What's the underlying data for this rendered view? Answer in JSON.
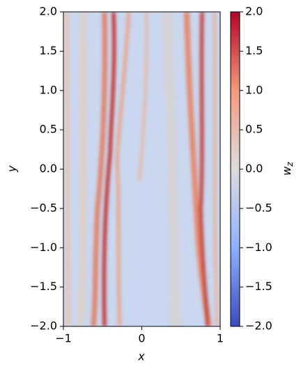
{
  "chart_data": {
    "type": "heatmap",
    "xlabel": "x",
    "ylabel": "y",
    "colorbar_label": {
      "base": "w",
      "sub": "z"
    },
    "xlim": [
      -1,
      1
    ],
    "ylim": [
      -2,
      2
    ],
    "xticks": [
      {
        "value": -1,
        "label": "−1"
      },
      0,
      1
    ],
    "yticks": [
      {
        "value": -2,
        "label": "−2.0"
      },
      {
        "value": -1.5,
        "label": "−1.5"
      },
      {
        "value": -1,
        "label": "−1.0"
      },
      {
        "value": -0.5,
        "label": "−0.5"
      },
      {
        "value": 0,
        "label": "0.0"
      },
      {
        "value": 0.5,
        "label": "0.5"
      },
      {
        "value": 1,
        "label": "1.0"
      },
      {
        "value": 1.5,
        "label": "1.5"
      },
      {
        "value": 2,
        "label": "2.0"
      }
    ],
    "clim": [
      -2,
      2
    ],
    "cticks": [
      {
        "value": -2,
        "label": "−2.0"
      },
      {
        "value": -1.5,
        "label": "−1.5"
      },
      {
        "value": -1,
        "label": "−1.0"
      },
      {
        "value": -0.5,
        "label": "−0.5"
      },
      {
        "value": 0,
        "label": "0.0"
      },
      {
        "value": 0.5,
        "label": "0.5"
      },
      {
        "value": 1,
        "label": "1.0"
      },
      {
        "value": 1.5,
        "label": "1.5"
      },
      {
        "value": 2,
        "label": "2.0"
      }
    ],
    "colormap": [
      "#3b4cc0",
      "#8db0fe",
      "#dddddd",
      "#f49a7b",
      "#b40426"
    ]
  }
}
